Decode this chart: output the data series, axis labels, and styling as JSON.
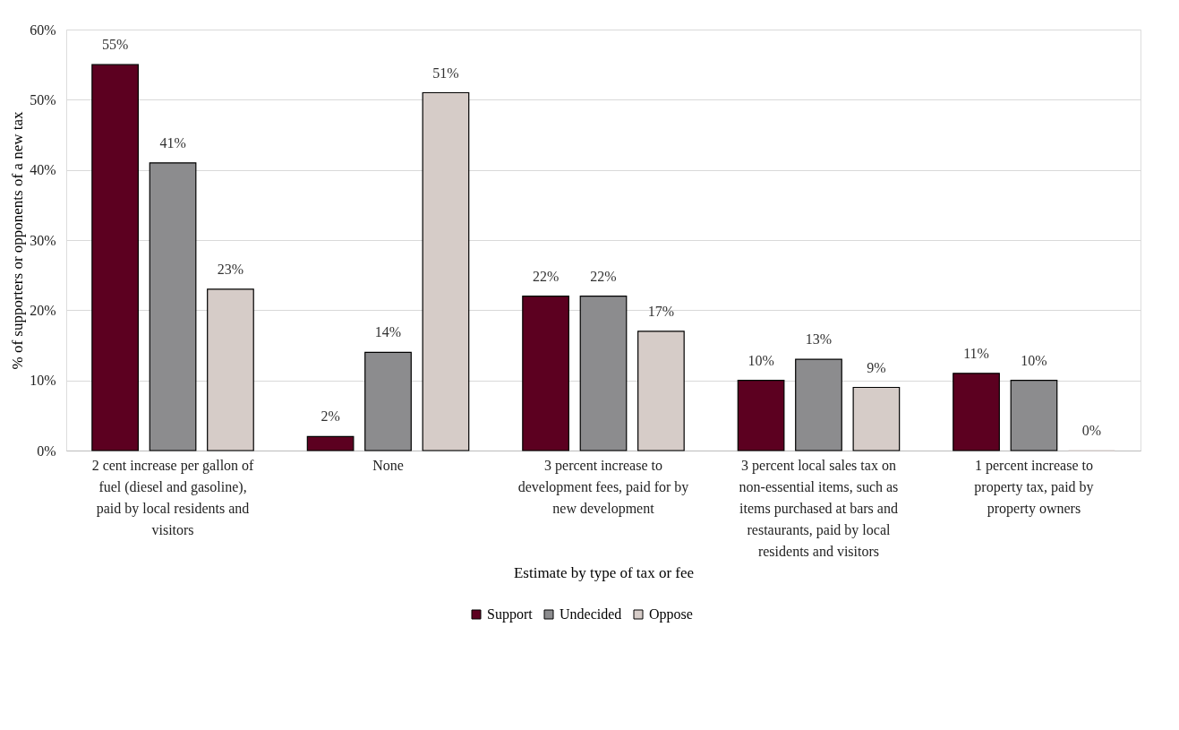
{
  "chart_data": {
    "type": "bar",
    "xlabel": "Estimate by type of tax or fee",
    "ylabel": "% of supporters or opponents of a new tax",
    "categories": [
      "2 cent increase per gallon of fuel (diesel and gasoline), paid by local residents and visitors",
      "None",
      "3 percent increase to development fees, paid for by new development",
      "3 percent local sales tax on non-essential items, such as items purchased at bars and restaurants, paid by local residents and visitors",
      "1 percent increase to property tax, paid by property owners"
    ],
    "series": [
      {
        "name": "Support",
        "color": "#5c0020",
        "values": [
          55,
          2,
          22,
          10,
          11
        ],
        "value_labels": [
          "55%",
          "2%",
          "22%",
          "10%",
          "11%"
        ]
      },
      {
        "name": "Undecided",
        "color": "#8c8c8e",
        "values": [
          41,
          14,
          22,
          13,
          10
        ],
        "value_labels": [
          "41%",
          "14%",
          "22%",
          "13%",
          "10%"
        ]
      },
      {
        "name": "Oppose",
        "color": "#d6ccc8",
        "values": [
          23,
          51,
          17,
          9,
          0
        ],
        "value_labels": [
          "23%",
          "51%",
          "17%",
          "9%",
          "0%"
        ]
      }
    ],
    "ylim": [
      0,
      60
    ],
    "yticks": [
      {
        "value": 0,
        "label": "0%"
      },
      {
        "value": 10,
        "label": "10%"
      },
      {
        "value": 20,
        "label": "20%"
      },
      {
        "value": 30,
        "label": "30%"
      },
      {
        "value": 40,
        "label": "40%"
      },
      {
        "value": 50,
        "label": "50%"
      },
      {
        "value": 60,
        "label": "60%"
      }
    ],
    "grid": "y",
    "legend": "bottom"
  }
}
